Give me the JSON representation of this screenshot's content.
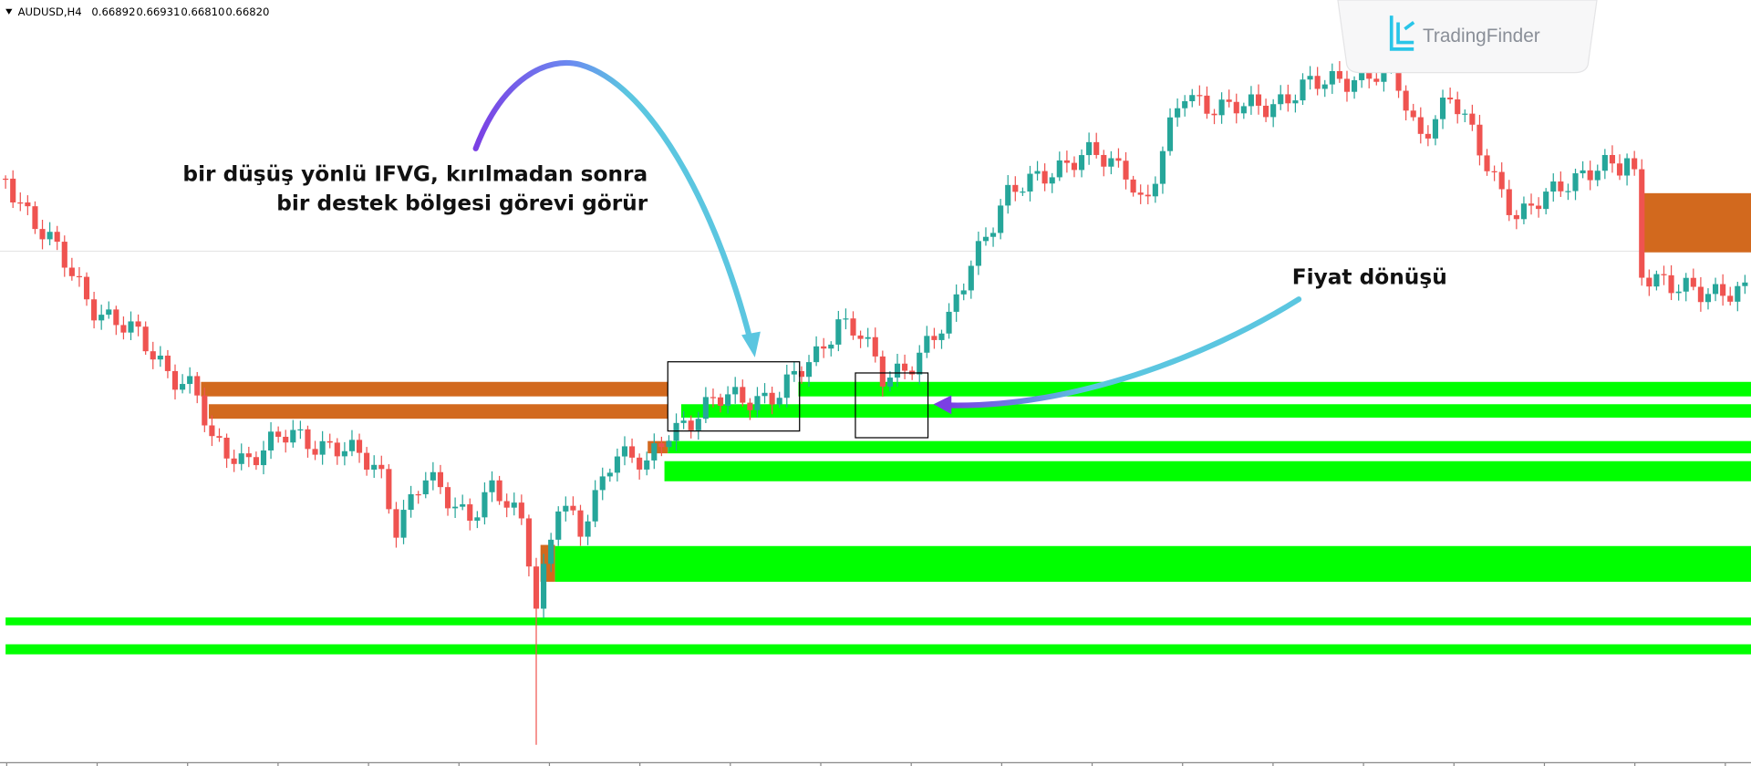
{
  "header": {
    "symbol": "AUDUSD,H4",
    "open": "0.66892",
    "high": "0.66931",
    "low": "0.66810",
    "close": "0.66820"
  },
  "annotations": {
    "ifvg_line1": "bir düşüş yönlü IFVG, kırılmadan sonra",
    "ifvg_line2": "bir destek bölgesi görevi görür",
    "price_reversal": "Fiyat dönüşü"
  },
  "logo": {
    "brand": "TradingFinder"
  }
}
